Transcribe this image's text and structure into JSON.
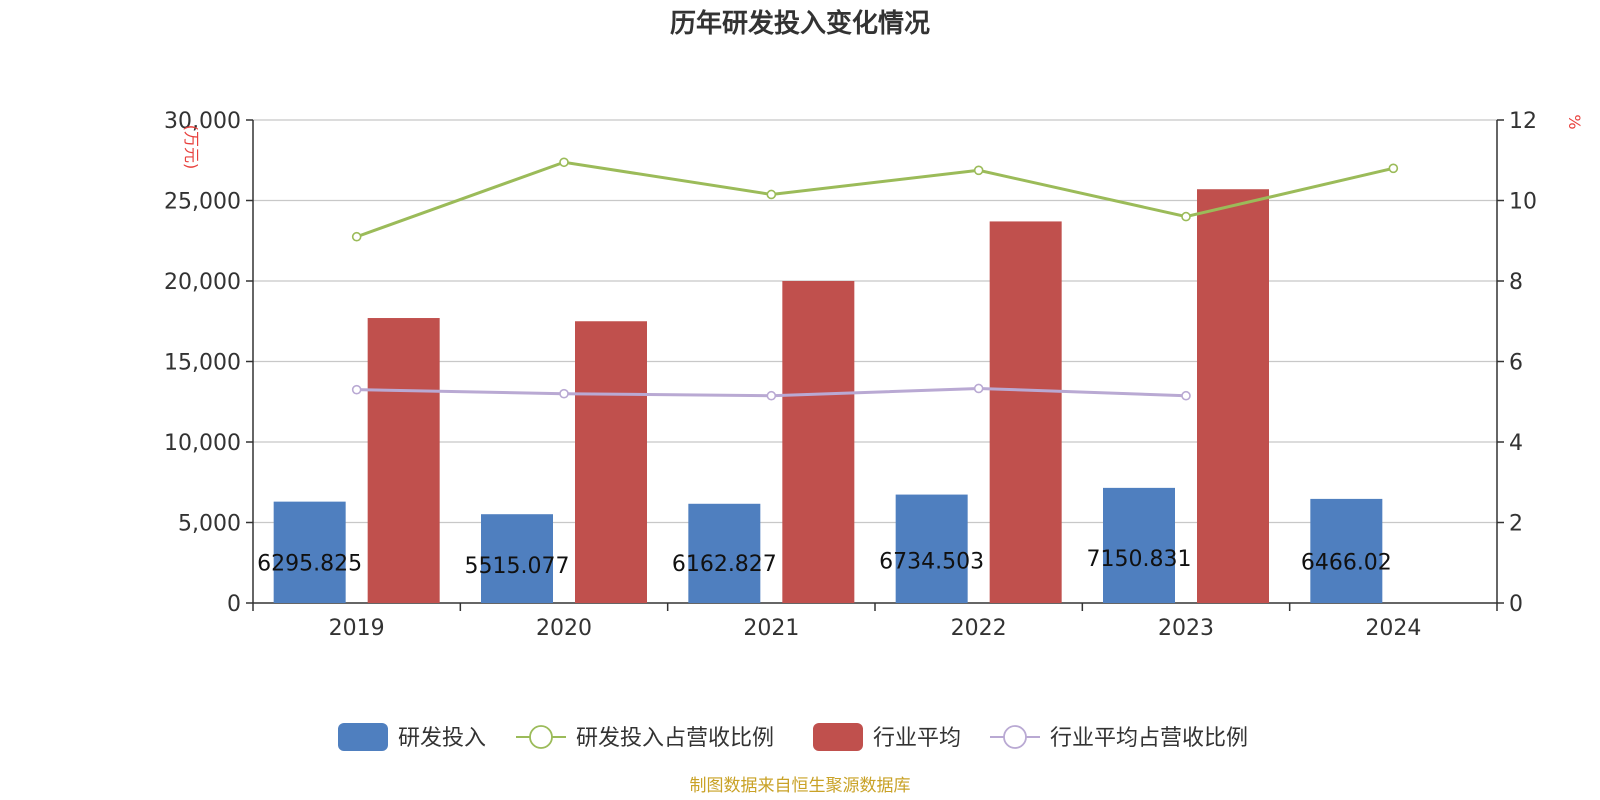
{
  "chart_data": {
    "type": "bar",
    "title": "历年研发投入变化情况",
    "categories": [
      "2019",
      "2020",
      "2021",
      "2022",
      "2023",
      "2024"
    ],
    "ylabel_left": "(万元)",
    "ylabel_right": "%",
    "y_left_ticks": [
      "0",
      "5,000",
      "10,000",
      "15,000",
      "20,000",
      "25,000",
      "30,000"
    ],
    "y_right_ticks": [
      "0",
      "2",
      "4",
      "6",
      "8",
      "10",
      "12"
    ],
    "ylim_left": [
      0,
      30000
    ],
    "ylim_right": [
      0,
      12
    ],
    "grid": true,
    "legend_position": "bottom",
    "series": [
      {
        "name": "研发投入",
        "type": "bar",
        "axis": "left",
        "color": "#4f7fbf",
        "values": [
          6295.825,
          5515.077,
          6162.827,
          6734.503,
          7150.831,
          6466.02
        ],
        "labels": [
          "6295.825",
          "5515.077",
          "6162.827",
          "6734.503",
          "7150.831",
          "6466.02"
        ]
      },
      {
        "name": "研发投入占营收比例",
        "type": "line",
        "axis": "right",
        "color": "#9bbb59",
        "values": [
          9.1,
          10.95,
          10.15,
          10.75,
          9.6,
          10.8
        ]
      },
      {
        "name": "行业平均",
        "type": "bar",
        "axis": "left",
        "color": "#c0504d",
        "values": [
          17700,
          17500,
          20000,
          23700,
          25700,
          null
        ]
      },
      {
        "name": "行业平均占营收比例",
        "type": "line",
        "axis": "right",
        "color": "#b9a9d3",
        "values": [
          5.3,
          5.2,
          5.15,
          5.33,
          5.15,
          null
        ]
      }
    ]
  },
  "source_text": "制图数据来自恒生聚源数据库"
}
